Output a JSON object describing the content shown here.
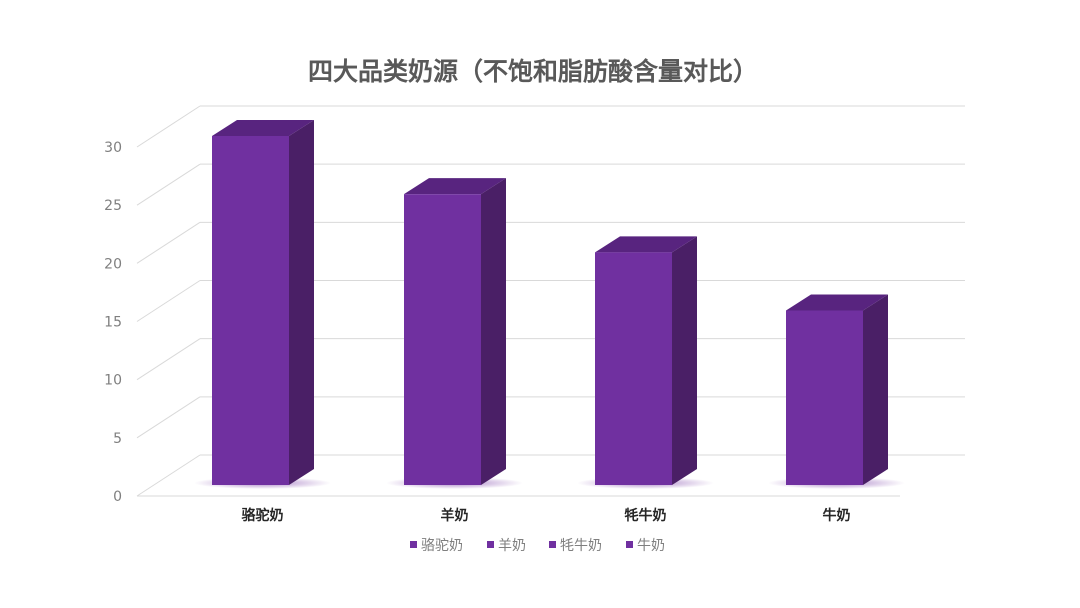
{
  "chart_data": {
    "type": "bar",
    "style": "3d-column",
    "title": "四大品类奶源（不饱和脂肪酸含量对比）",
    "categories": [
      "骆驼奶",
      "羊奶",
      "牦牛奶",
      "牛奶"
    ],
    "series": [
      {
        "values": [
          30,
          25,
          20,
          15
        ]
      }
    ],
    "legend": {
      "entries": [
        "骆驼奶",
        "羊奶",
        "牦牛奶",
        "牛奶"
      ],
      "position": "bottom"
    },
    "ylim": [
      0,
      30
    ],
    "yticks": [
      0,
      5,
      10,
      15,
      20,
      25,
      30
    ],
    "grid": true,
    "colors": {
      "front": "#7030a0",
      "side": "#4a1f66",
      "top": "#58247f",
      "grid": "#d9d9d9",
      "title": "#595959"
    }
  }
}
